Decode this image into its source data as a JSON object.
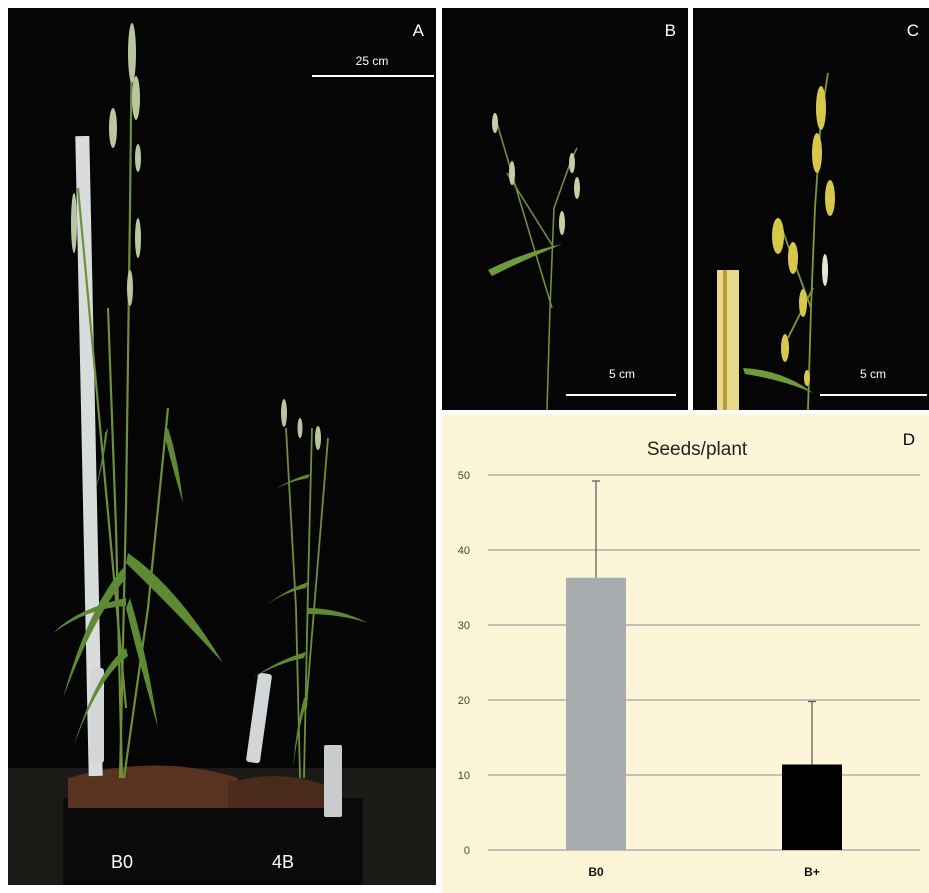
{
  "panels": {
    "a": {
      "letter": "A",
      "scale_label": "25 cm",
      "pot_left_label": "B0",
      "pot_right_label": "4B"
    },
    "b": {
      "letter": "B",
      "scale_label": "5 cm"
    },
    "c": {
      "letter": "C",
      "scale_label": "5 cm"
    },
    "d": {
      "letter": "D"
    }
  },
  "colors": {
    "bar_b0": "#a7adae",
    "bar_bplus": "#000000",
    "grid": "#8a8f93",
    "panel_d_bg": "#fdf5d8"
  },
  "chart_data": {
    "type": "bar",
    "title": "Seeds/plant",
    "categories": [
      "B0",
      "B+"
    ],
    "values": [
      36.3,
      11.4
    ],
    "error_upper": [
      49.2,
      19.8
    ],
    "ylim": [
      0,
      50
    ],
    "yticks": [
      0,
      10,
      20,
      30,
      40,
      50
    ],
    "grid": true,
    "legend": "none"
  }
}
